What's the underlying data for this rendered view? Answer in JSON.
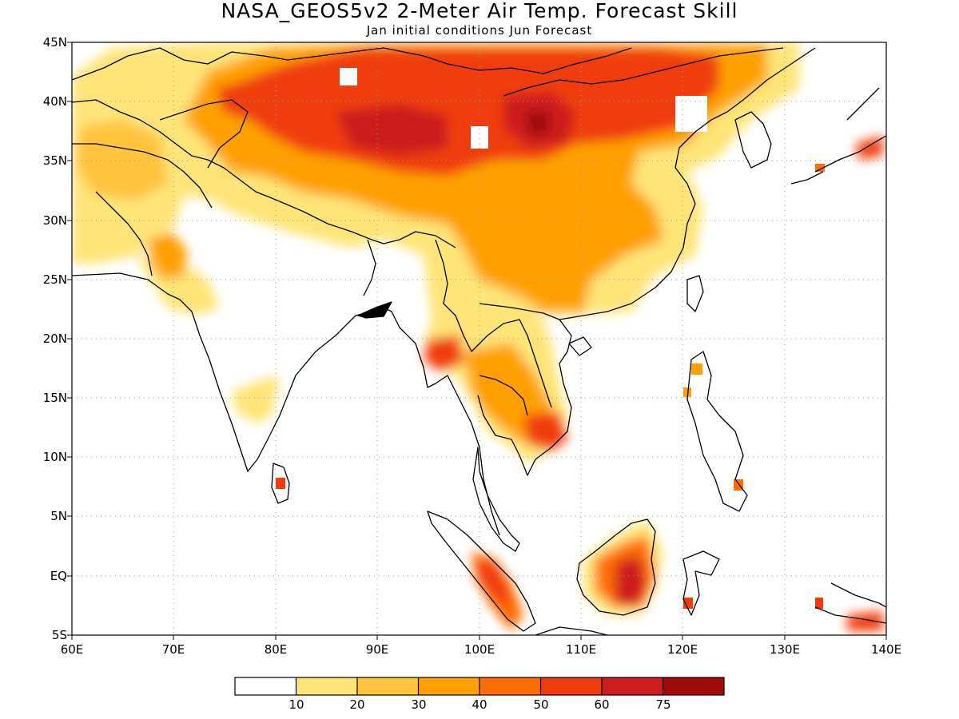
{
  "title": "NASA_GEOS5v2 2-Meter Air Temp. Forecast Skill",
  "subtitle": "Jan initial conditions  Jun Forecast",
  "map": {
    "lon_range": [
      60,
      140
    ],
    "lat_range": [
      -5,
      45
    ],
    "grid": "dotted",
    "y_ticks": [
      "45N",
      "40N",
      "35N",
      "30N",
      "25N",
      "20N",
      "15N",
      "10N",
      "5N",
      "EQ",
      "5S"
    ],
    "x_ticks": [
      "60E",
      "70E",
      "80E",
      "90E",
      "100E",
      "110E",
      "120E",
      "130E",
      "140E"
    ]
  },
  "colorbar": {
    "colors": [
      "#ffffff",
      "#ffe478",
      "#ffc33c",
      "#ffa000",
      "#ff6e00",
      "#f03c0a",
      "#cd1e1e",
      "#a00a0a"
    ],
    "labels": [
      "10",
      "20",
      "30",
      "40",
      "50",
      "60",
      "75"
    ]
  }
}
